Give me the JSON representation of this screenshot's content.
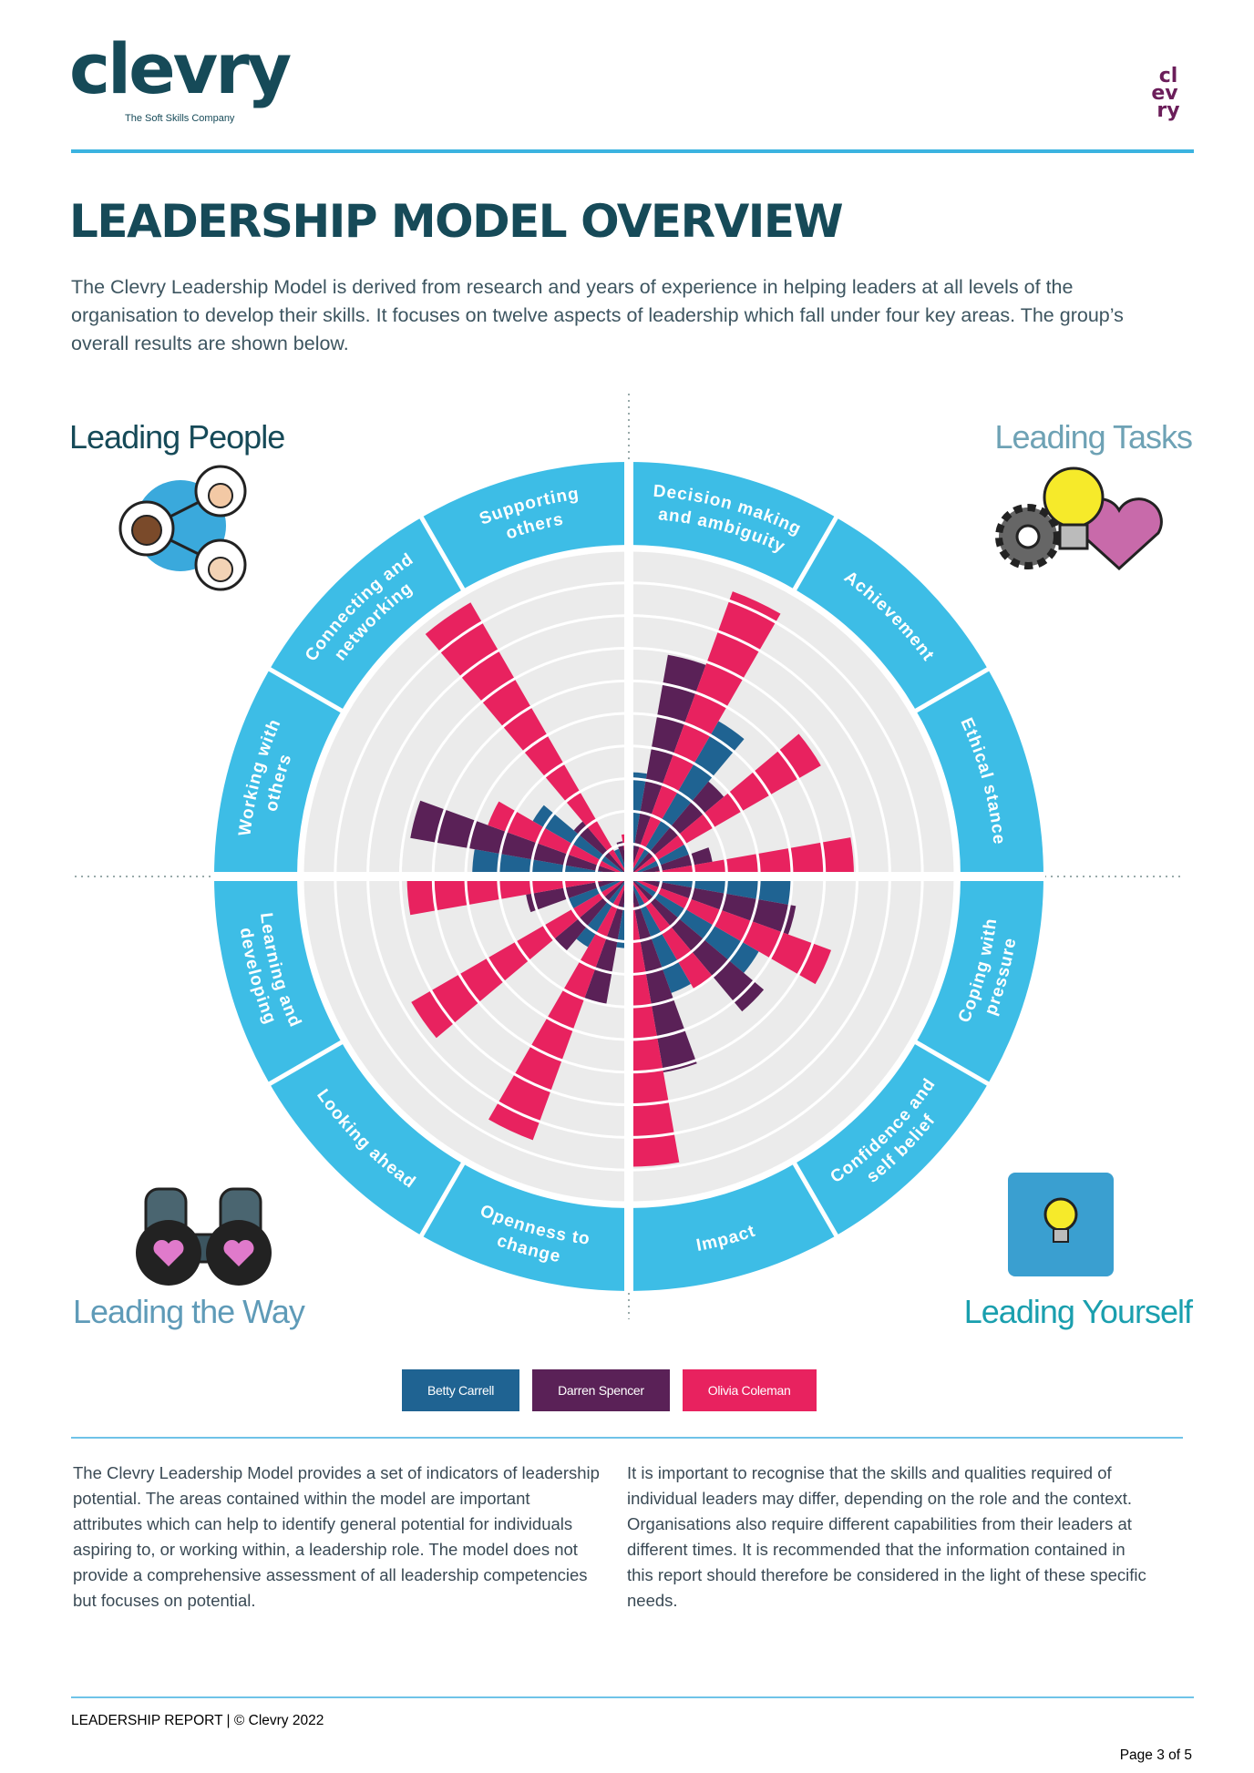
{
  "header": {
    "logo": "clevry",
    "tagline": "The Soft Skills Company",
    "mark_lines": [
      "cl",
      "ev",
      "ry"
    ]
  },
  "title": "LEADERSHIP MODEL OVERVIEW",
  "intro": "The Clevry Leadership Model is derived from research and years of experience in helping leaders at all levels of the organisation to develop their skills. It focuses on twelve aspects of leadership which fall under four key areas. The group’s overall results are shown below.",
  "chart_data": {
    "type": "polar-bar",
    "categories": [
      [
        "Decision making",
        "and ambiguity"
      ],
      [
        "Achievement"
      ],
      [
        "Ethical stance"
      ],
      [
        "Coping with",
        "pressure"
      ],
      [
        "Confidence and",
        "self belief"
      ],
      [
        "Impact"
      ],
      [
        "Openness to",
        "change"
      ],
      [
        "Looking ahead"
      ],
      [
        "Learning and",
        "developing"
      ],
      [
        "Working with",
        "others"
      ],
      [
        "Connecting and",
        "networking"
      ],
      [
        "Supporting",
        "others"
      ]
    ],
    "series": [
      {
        "name": "Betty Carrell",
        "color": "#1f6392",
        "values": [
          3.2,
          5.5,
          2.0,
          5.0,
          4.6,
          3.8,
          2.2,
          2.5,
          2.0,
          4.8,
          3.4,
          0.9
        ]
      },
      {
        "name": "Darren Spencer",
        "color": "#5a2157",
        "values": [
          6.9,
          3.8,
          2.6,
          5.2,
          5.4,
          6.1,
          4.0,
          3.0,
          3.2,
          6.8,
          2.2,
          1.1
        ]
      },
      {
        "name": "Olivia Coleman",
        "color": "#e8225f",
        "values": [
          9.3,
          6.8,
          6.9,
          6.6,
          4.0,
          8.9,
          8.6,
          7.7,
          6.8,
          4.6,
          9.7,
          1.3
        ]
      }
    ],
    "rlim": [
      0,
      10
    ],
    "grid": true,
    "quadrant_labels": [
      "Leading People",
      "Leading Tasks",
      "Leading the Way",
      "Leading Yourself"
    ]
  },
  "body": {
    "left": "The Clevry Leadership Model provides a set of indicators of leadership potential. The areas contained within the model are important attributes which can help to identify general potential for individuals aspiring to, or working within, a leadership role. The model does not provide a comprehensive assessment of all leadership competencies but focuses on potential.",
    "right": "It is important to recognise that the skills and qualities required of individual leaders may differ, depending on the role and the context. Organisations also require different capabilities from their leaders at different times. It is recommended that the information contained in this report should therefore be considered in the light of these specific needs."
  },
  "footer": {
    "left": "LEADERSHIP REPORT | © Clevry 2022",
    "right": "Page 3 of 5"
  }
}
